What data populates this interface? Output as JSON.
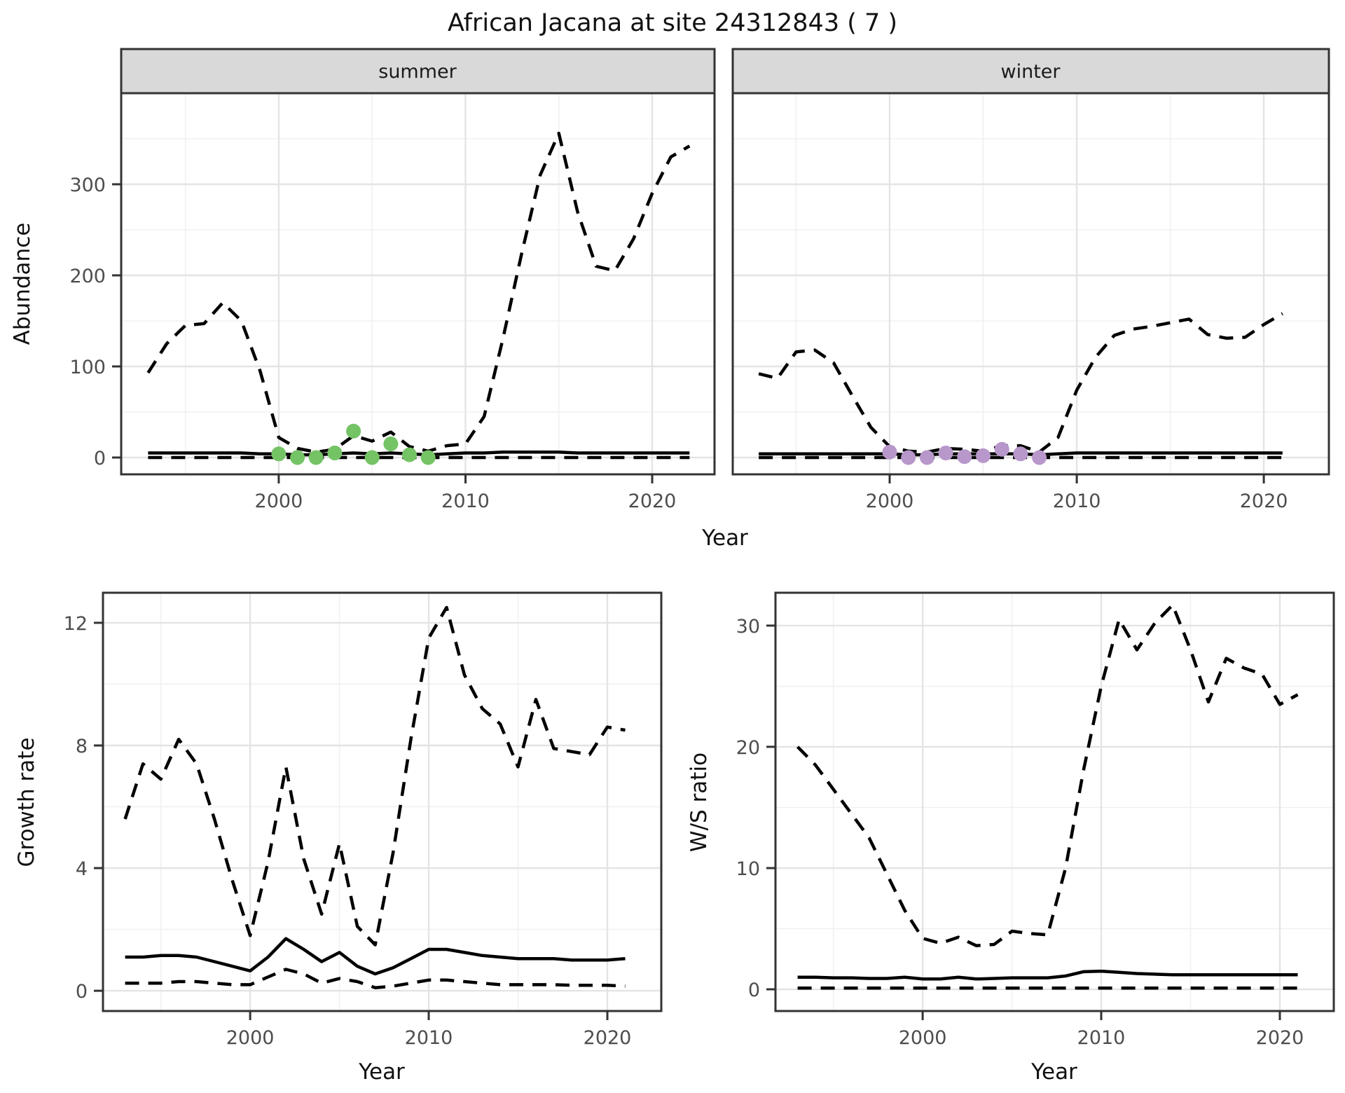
{
  "title": "African Jacana at site 24312843 ( 7 )",
  "colors": {
    "summer_points": "#74c365",
    "winter_points": "#b897cb",
    "line": "#000000",
    "strip_background": "#d9d9d9",
    "panel_border": "#333333",
    "grid_major": "#e4e4e4",
    "grid_minor": "#f0f0f0",
    "tick_text": "#4d4d4d"
  },
  "chart_data": [
    {
      "id": "abundance_summer",
      "type": "line",
      "facet_label": "summer",
      "xlabel": "Year",
      "ylabel": "Abundance",
      "xlim": [
        1991.56,
        2023.34
      ],
      "ylim": [
        -18.5,
        400
      ],
      "x_ticks": [
        2000,
        2010,
        2020
      ],
      "x_minor_ticks": [
        1995,
        2005,
        2015
      ],
      "y_ticks": [
        0,
        100,
        200,
        300
      ],
      "y_minor_ticks": [
        50,
        150,
        250,
        350
      ],
      "grid": true,
      "legend": "none",
      "x_years": [
        1993,
        1994,
        1995,
        1996,
        1997,
        1998,
        1999,
        2000,
        2001,
        2002,
        2003,
        2004,
        2005,
        2006,
        2007,
        2008,
        2009,
        2010,
        2011,
        2012,
        2013,
        2014,
        2015,
        2016,
        2017,
        2018,
        2019,
        2020,
        2021,
        2022
      ],
      "series": [
        {
          "name": "upper_ci",
          "style": "dashed",
          "values": [
            93,
            125,
            145,
            147,
            170,
            150,
            95,
            22,
            10,
            6,
            9,
            24,
            18,
            28,
            12,
            7,
            13,
            15,
            45,
            130,
            223,
            310,
            356,
            270,
            210,
            205,
            240,
            290,
            330,
            342
          ]
        },
        {
          "name": "median",
          "style": "solid",
          "values": [
            5,
            5,
            5,
            5,
            5,
            5,
            4,
            4,
            3,
            3,
            4,
            5,
            4,
            5,
            4,
            3,
            4,
            5,
            5,
            6,
            6,
            6,
            6,
            5,
            5,
            5,
            5,
            5,
            5,
            5
          ]
        },
        {
          "name": "lower_ci",
          "style": "dashed",
          "values": [
            0,
            0,
            0,
            0,
            0,
            0,
            0,
            0,
            0,
            0,
            0,
            0,
            0,
            0,
            0,
            0,
            0,
            0,
            0,
            0,
            0,
            0,
            0,
            0,
            0,
            0,
            0,
            0,
            0,
            0
          ]
        }
      ],
      "points": {
        "name": "observed_counts",
        "color": "#74c365",
        "x": [
          2000,
          2001,
          2002,
          2003,
          2004,
          2005,
          2006,
          2007,
          2008
        ],
        "values": [
          4,
          0,
          0,
          5,
          29,
          0,
          15,
          3,
          0
        ]
      }
    },
    {
      "id": "abundance_winter",
      "type": "line",
      "facet_label": "winter",
      "xlabel": "Year",
      "ylabel": "Abundance",
      "xlim": [
        1991.61,
        2023.48
      ],
      "ylim": [
        -18.5,
        400
      ],
      "x_ticks": [
        2000,
        2010,
        2020
      ],
      "x_minor_ticks": [
        1995,
        2005,
        2015
      ],
      "y_ticks": [
        0,
        100,
        200,
        300
      ],
      "y_minor_ticks": [
        50,
        150,
        250,
        350
      ],
      "grid": true,
      "legend": "none",
      "x_years": [
        1993,
        1994,
        1995,
        1996,
        1997,
        1998,
        1999,
        2000,
        2001,
        2002,
        2003,
        2004,
        2005,
        2006,
        2007,
        2008,
        2009,
        2010,
        2011,
        2012,
        2013,
        2014,
        2015,
        2016,
        2017,
        2018,
        2019,
        2020,
        2021
      ],
      "series": [
        {
          "name": "upper_ci",
          "style": "dashed",
          "values": [
            92,
            87,
            116,
            118,
            104,
            68,
            33,
            12,
            7,
            6,
            10,
            9,
            7,
            13,
            13,
            6,
            22,
            74,
            110,
            134,
            141,
            144,
            148,
            152,
            135,
            131,
            132,
            146,
            158
          ]
        },
        {
          "name": "median",
          "style": "solid",
          "values": [
            4,
            4,
            4,
            4,
            4,
            4,
            4,
            4,
            3,
            3,
            4,
            4,
            4,
            4,
            4,
            3,
            4,
            5,
            5,
            5,
            5,
            5,
            5,
            5,
            5,
            5,
            5,
            5,
            5
          ]
        },
        {
          "name": "lower_ci",
          "style": "dashed",
          "values": [
            0,
            0,
            0,
            0,
            0,
            0,
            0,
            0,
            0,
            0,
            0,
            0,
            0,
            0,
            0,
            0,
            0,
            0,
            0,
            0,
            0,
            0,
            0,
            0,
            0,
            0,
            0,
            0,
            0
          ]
        }
      ],
      "points": {
        "name": "observed_counts",
        "color": "#b897cb",
        "x": [
          2000,
          2001,
          2002,
          2003,
          2004,
          2005,
          2006,
          2007,
          2008
        ],
        "values": [
          6,
          0,
          0,
          5,
          1,
          2,
          9,
          4,
          0
        ]
      }
    },
    {
      "id": "growth_rate",
      "type": "line",
      "facet_label": "",
      "xlabel": "Year",
      "ylabel": "Growth rate",
      "xlim": [
        1991.76,
        2023.02
      ],
      "ylim": [
        -0.66,
        12.98
      ],
      "x_ticks": [
        2000,
        2010,
        2020
      ],
      "x_minor_ticks": [
        1995,
        2005,
        2015
      ],
      "y_ticks": [
        0,
        4,
        8,
        12
      ],
      "y_minor_ticks": [
        2,
        6,
        10
      ],
      "grid": true,
      "legend": "none",
      "x_years": [
        1993,
        1994,
        1995,
        1996,
        1997,
        1998,
        1999,
        2000,
        2001,
        2002,
        2003,
        2004,
        2005,
        2006,
        2007,
        2008,
        2009,
        2010,
        2011,
        2012,
        2013,
        2014,
        2015,
        2016,
        2017,
        2018,
        2019,
        2020,
        2021
      ],
      "series": [
        {
          "name": "upper_ci",
          "style": "dashed",
          "values": [
            5.6,
            7.4,
            6.9,
            8.2,
            7.4,
            5.6,
            3.6,
            1.8,
            4.2,
            7.3,
            4.3,
            2.5,
            4.8,
            2.1,
            1.5,
            4.5,
            8.2,
            11.5,
            12.5,
            10.3,
            9.2,
            8.7,
            7.3,
            9.5,
            7.9,
            7.8,
            7.7,
            8.6,
            8.5
          ]
        },
        {
          "name": "median",
          "style": "solid",
          "values": [
            1.1,
            1.1,
            1.15,
            1.15,
            1.1,
            0.95,
            0.8,
            0.65,
            1.1,
            1.7,
            1.35,
            0.95,
            1.25,
            0.8,
            0.55,
            0.75,
            1.05,
            1.35,
            1.35,
            1.25,
            1.15,
            1.1,
            1.05,
            1.05,
            1.05,
            1.0,
            1.0,
            1.0,
            1.05
          ]
        },
        {
          "name": "lower_ci",
          "style": "dashed",
          "values": [
            0.25,
            0.25,
            0.25,
            0.3,
            0.3,
            0.25,
            0.2,
            0.2,
            0.45,
            0.7,
            0.55,
            0.25,
            0.4,
            0.3,
            0.1,
            0.15,
            0.25,
            0.35,
            0.35,
            0.3,
            0.25,
            0.2,
            0.2,
            0.2,
            0.2,
            0.18,
            0.18,
            0.18,
            0.15
          ]
        }
      ],
      "points": null
    },
    {
      "id": "ws_ratio",
      "type": "line",
      "facet_label": "",
      "xlabel": "Year",
      "ylabel": "W/S ratio",
      "xlim": [
        1991.76,
        2023.02
      ],
      "ylim": [
        -1.79,
        32.71
      ],
      "x_ticks": [
        2000,
        2010,
        2020
      ],
      "x_minor_ticks": [
        1995,
        2005,
        2015
      ],
      "y_ticks": [
        0,
        10,
        20,
        30
      ],
      "y_minor_ticks": [
        5,
        15,
        25
      ],
      "grid": true,
      "legend": "none",
      "x_years": [
        1993,
        1994,
        1995,
        1996,
        1997,
        1998,
        1999,
        2000,
        2001,
        2002,
        2003,
        2004,
        2005,
        2006,
        2007,
        2008,
        2009,
        2010,
        2011,
        2012,
        2013,
        2014,
        2015,
        2016,
        2017,
        2018,
        2019,
        2020,
        2021
      ],
      "series": [
        {
          "name": "upper_ci",
          "style": "dashed",
          "values": [
            20,
            18.5,
            16.5,
            14.5,
            12.5,
            9.5,
            6.5,
            4.2,
            3.8,
            4.3,
            3.6,
            3.7,
            4.8,
            4.6,
            4.5,
            10,
            18,
            25,
            30.5,
            28,
            30.2,
            31.7,
            28,
            23.7,
            27.3,
            26.5,
            26,
            23.5,
            24.3
          ]
        },
        {
          "name": "median",
          "style": "solid",
          "values": [
            1.0,
            1.0,
            0.95,
            0.95,
            0.9,
            0.9,
            1.0,
            0.85,
            0.85,
            1.0,
            0.85,
            0.9,
            0.95,
            0.95,
            0.95,
            1.1,
            1.45,
            1.5,
            1.4,
            1.3,
            1.25,
            1.2,
            1.2,
            1.2,
            1.2,
            1.2,
            1.2,
            1.2,
            1.2
          ]
        },
        {
          "name": "lower_ci",
          "style": "dashed",
          "values": [
            0.1,
            0.1,
            0.1,
            0.1,
            0.1,
            0.1,
            0.1,
            0.1,
            0.1,
            0.1,
            0.1,
            0.1,
            0.1,
            0.1,
            0.1,
            0.1,
            0.1,
            0.1,
            0.1,
            0.1,
            0.1,
            0.1,
            0.1,
            0.1,
            0.1,
            0.1,
            0.1,
            0.1,
            0.1
          ]
        }
      ],
      "points": null
    }
  ]
}
